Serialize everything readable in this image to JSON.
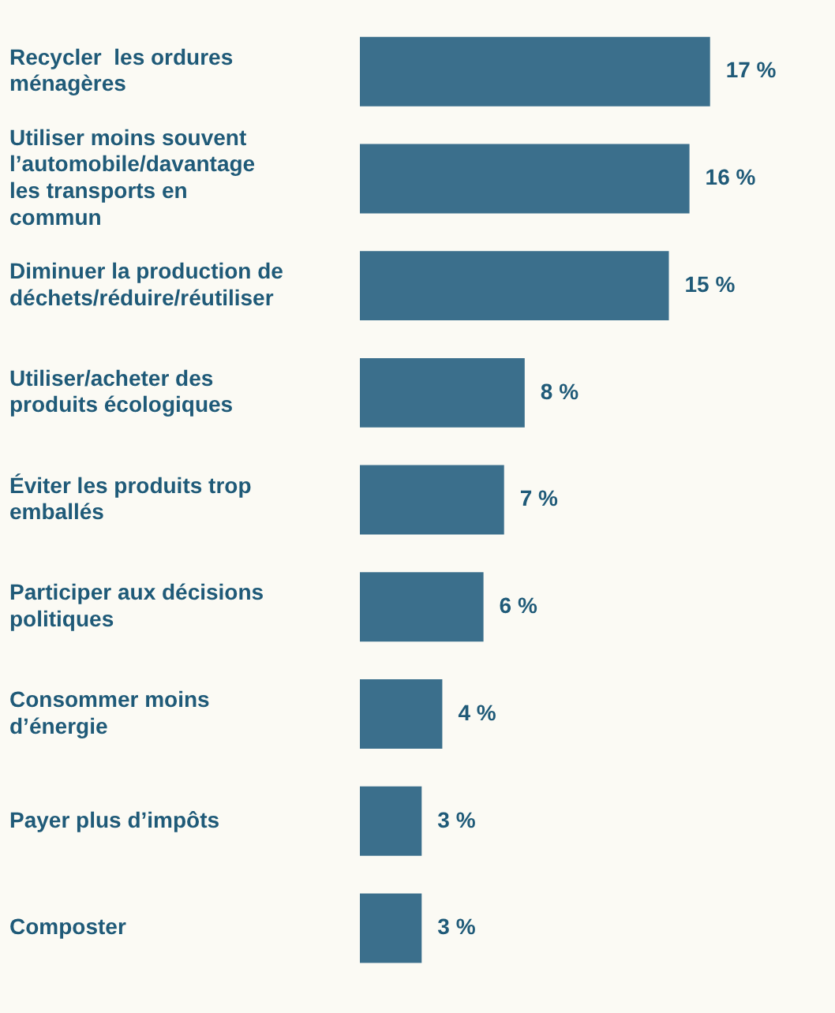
{
  "chart_data": {
    "type": "bar",
    "orientation": "horizontal",
    "categories": [
      "Recycler  les ordures ménagères",
      "Utiliser moins souvent l’automobile/davantage les transports en commun",
      "Diminuer la production de déchets/réduire/réutiliser",
      "Utiliser/acheter des produits écologiques",
      "Éviter les produits trop emballés",
      "Participer aux décisions politiques",
      "Consommer moins d’énergie",
      "Payer plus d’impôts",
      "Composter"
    ],
    "values": [
      17,
      16,
      15,
      8,
      7,
      6,
      4,
      3,
      3
    ],
    "value_labels": [
      "17 %",
      "16 %",
      "15 %",
      "8 %",
      "7 %",
      "6 %",
      "4 %",
      "3 %",
      "3 %"
    ],
    "color": "#3b6f8c",
    "grid": false,
    "legend": false,
    "tick_labels": "y"
  }
}
